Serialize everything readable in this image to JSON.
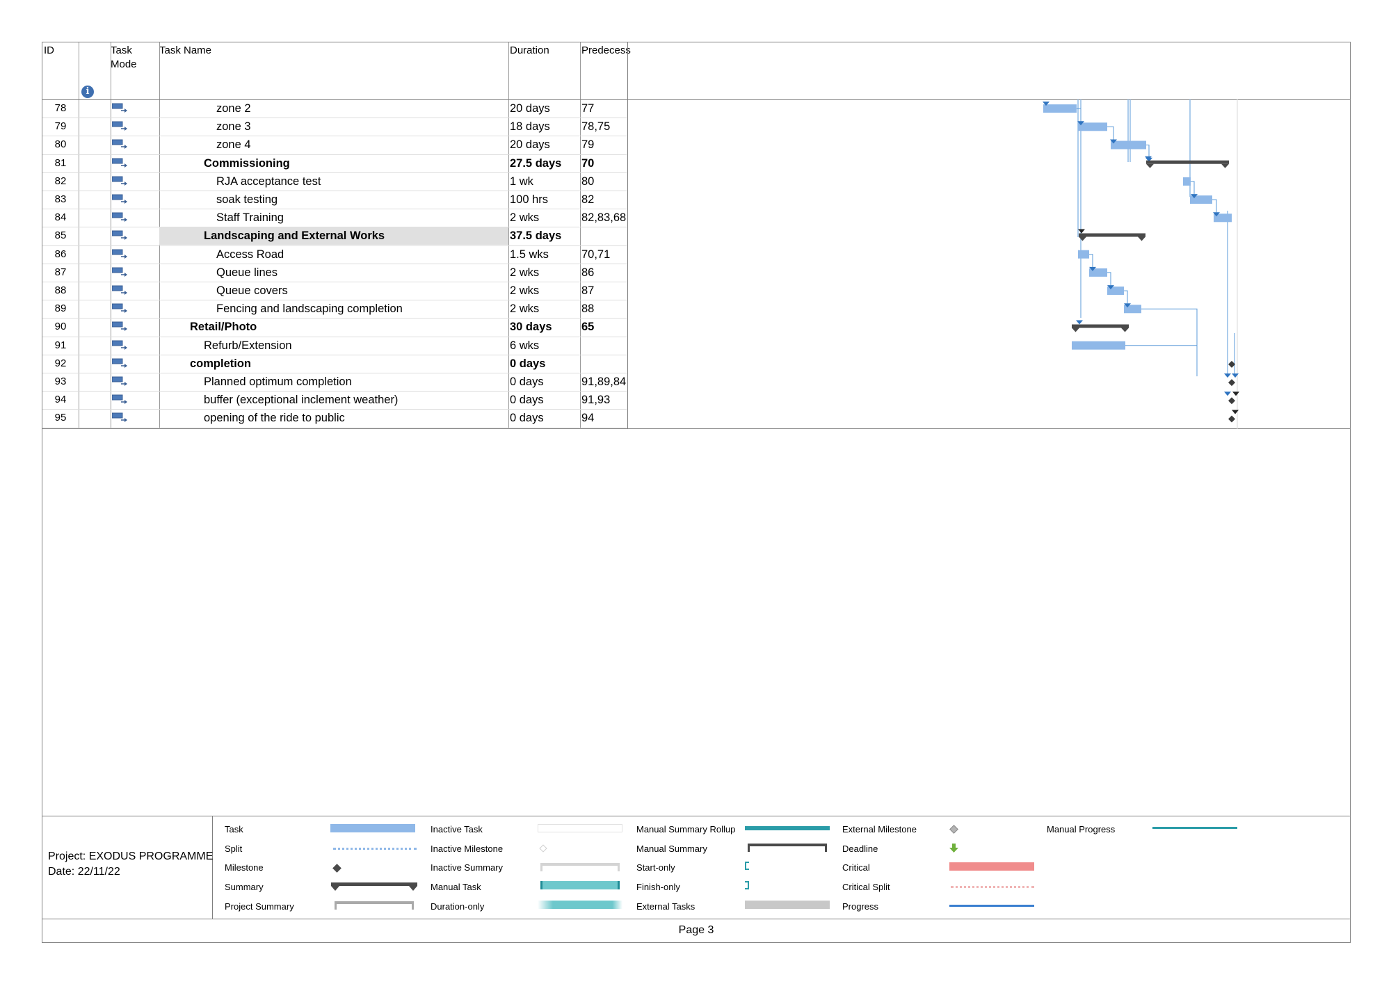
{
  "header": {
    "col_id": "ID",
    "col_mode_l1": "Task",
    "col_mode_l2": "Mode",
    "col_name": "Task Name",
    "col_duration": "Duration",
    "col_pred": "Predecess",
    "info_icon": "info-icon"
  },
  "rows": [
    {
      "id": "78",
      "name": "zone 2",
      "duration": "20 days",
      "pred": "77"
    },
    {
      "id": "79",
      "name": "zone 3",
      "duration": "18 days",
      "pred": "78,75"
    },
    {
      "id": "80",
      "name": "zone 4",
      "duration": "20 days",
      "pred": "79"
    },
    {
      "id": "81",
      "name": "Commissioning",
      "duration": "27.5 days",
      "pred": "70"
    },
    {
      "id": "82",
      "name": "RJA acceptance test",
      "duration": "1 wk",
      "pred": "80"
    },
    {
      "id": "83",
      "name": "soak testing",
      "duration": "100 hrs",
      "pred": "82"
    },
    {
      "id": "84",
      "name": "Staff Training",
      "duration": "2 wks",
      "pred": "82,83,68"
    },
    {
      "id": "85",
      "name": "Landscaping and External Works",
      "duration": "37.5 days",
      "pred": ""
    },
    {
      "id": "86",
      "name": "Access Road",
      "duration": "1.5 wks",
      "pred": "70,71"
    },
    {
      "id": "87",
      "name": "Queue lines",
      "duration": "2 wks",
      "pred": "86"
    },
    {
      "id": "88",
      "name": "Queue covers",
      "duration": "2 wks",
      "pred": "87"
    },
    {
      "id": "89",
      "name": "Fencing and landscaping completion",
      "duration": "2 wks",
      "pred": "88"
    },
    {
      "id": "90",
      "name": "Retail/Photo",
      "duration": "30 days",
      "pred": "65"
    },
    {
      "id": "91",
      "name": "Refurb/Extension",
      "duration": "6 wks",
      "pred": ""
    },
    {
      "id": "92",
      "name": "completion",
      "duration": "0 days",
      "pred": ""
    },
    {
      "id": "93",
      "name": "Planned optimum completion",
      "duration": "0 days",
      "pred": "91,89,84"
    },
    {
      "id": "94",
      "name": "buffer (exceptional inclement weather)",
      "duration": "0 days",
      "pred": "91,93"
    },
    {
      "id": "95",
      "name": "opening of the ride to public",
      "duration": "0 days",
      "pred": "94"
    }
  ],
  "footer": {
    "project": "Project: EXODUS PROGRAMME",
    "date": "Date: 22/11/22",
    "page": "Page 3"
  },
  "legend": {
    "task": "Task",
    "split": "Split",
    "milestone": "Milestone",
    "summary": "Summary",
    "project_summary": "Project Summary",
    "inactive_task": "Inactive Task",
    "inactive_milestone": "Inactive Milestone",
    "inactive_summary": "Inactive Summary",
    "manual_task": "Manual Task",
    "duration_only": "Duration-only",
    "manual_summary_rollup": "Manual Summary Rollup",
    "manual_summary": "Manual Summary",
    "start_only": "Start-only",
    "finish_only": "Finish-only",
    "external_tasks": "External Tasks",
    "external_milestone": "External Milestone",
    "deadline": "Deadline",
    "critical": "Critical",
    "critical_split": "Critical Split",
    "progress": "Progress",
    "manual_progress": "Manual Progress"
  },
  "colors": {
    "task_bar": "#8fb8e8",
    "summary_bar": "#4a4a4a",
    "link_line": "#5a9ad8",
    "critical": "#f08c8c",
    "manual": "#6ec8cc",
    "manual_rollup": "#2a9ca8",
    "progress": "#3a7fd0",
    "deadline": "#6fb03c"
  }
}
